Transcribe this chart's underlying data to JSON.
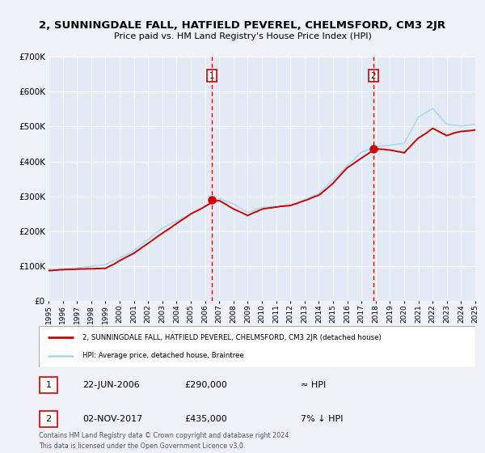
{
  "title": "2, SUNNINGDALE FALL, HATFIELD PEVEREL, CHELMSFORD, CM3 2JR",
  "subtitle": "Price paid vs. HM Land Registry's House Price Index (HPI)",
  "background_color": "#eef2f8",
  "plot_background": "#e4eaf5",
  "grid_color": "#ffffff",
  "ylim": [
    0,
    700000
  ],
  "yticks": [
    0,
    100000,
    200000,
    300000,
    400000,
    500000,
    600000,
    700000
  ],
  "ytick_labels": [
    "£0",
    "£100K",
    "£200K",
    "£300K",
    "£400K",
    "£500K",
    "£600K",
    "£700K"
  ],
  "sale1_year": 2006.47,
  "sale2_year": 2017.84,
  "sale1_price": 290000,
  "sale2_price": 435000,
  "legend_line1": "2, SUNNINGDALE FALL, HATFIELD PEVEREL, CHELMSFORD, CM3 2JR (detached house)",
  "legend_line2": "HPI: Average price, detached house, Braintree",
  "table_row1": [
    "1",
    "22-JUN-2006",
    "£290,000",
    "≈ HPI"
  ],
  "table_row2": [
    "2",
    "02-NOV-2017",
    "£435,000",
    "7% ↓ HPI"
  ],
  "footer1": "Contains HM Land Registry data © Crown copyright and database right 2024.",
  "footer2": "This data is licensed under the Open Government Licence v3.0.",
  "hpi_color": "#add8f0",
  "price_color": "#cc0000",
  "vline_color": "#cc0000",
  "label_box_color": "#cc0000"
}
